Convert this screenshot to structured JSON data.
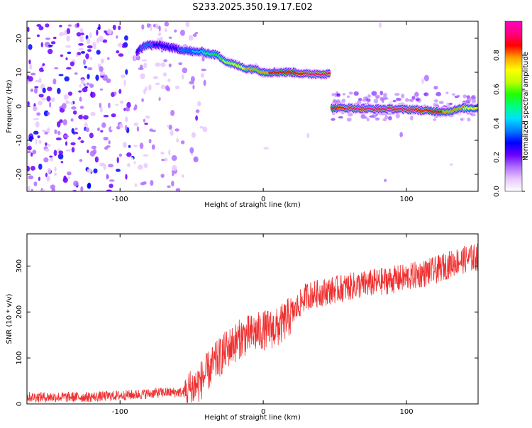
{
  "title": "S233.2025.350.19.17.E02",
  "chart_data": [
    {
      "type": "heatmap",
      "name": "spectrogram",
      "xlabel": "Height of straight line (km)",
      "ylabel": "Frequency (Hz)",
      "xlim": [
        -165,
        150
      ],
      "ylim": [
        -25,
        25
      ],
      "xticks": [
        -100,
        0,
        100
      ],
      "yticks": [
        -20,
        -10,
        0,
        10,
        20
      ],
      "grid": false,
      "colorbar": {
        "label": "Normalized spectral amplitude",
        "range": [
          0,
          1
        ],
        "ticks": [
          0.0,
          0.2,
          0.4,
          0.6,
          0.8
        ],
        "colors": [
          "#ffffff",
          "#e8c8ff",
          "#b070ff",
          "#6a00ff",
          "#0000ff",
          "#0080ff",
          "#00e0ff",
          "#00ff80",
          "#20ff00",
          "#c0ff00",
          "#ffff00",
          "#ffa000",
          "#ff0000",
          "#ff0080",
          "#ff00c0"
        ]
      },
      "ridge": [
        {
          "x": -88,
          "y": 16,
          "a": 0.3
        },
        {
          "x": -82,
          "y": 18,
          "a": 0.35
        },
        {
          "x": -72,
          "y": 18,
          "a": 0.3
        },
        {
          "x": -62,
          "y": 17,
          "a": 0.3
        },
        {
          "x": -55,
          "y": 16.5,
          "a": 0.35
        },
        {
          "x": -48,
          "y": 16,
          "a": 0.4
        },
        {
          "x": -43,
          "y": 16,
          "a": 0.45
        },
        {
          "x": -38,
          "y": 15.5,
          "a": 0.5
        },
        {
          "x": -32,
          "y": 15,
          "a": 0.55
        },
        {
          "x": -25,
          "y": 13,
          "a": 0.65
        },
        {
          "x": -18,
          "y": 12,
          "a": 0.7
        },
        {
          "x": -12,
          "y": 11,
          "a": 0.75
        },
        {
          "x": -5,
          "y": 11,
          "a": 0.75
        },
        {
          "x": 0,
          "y": 10,
          "a": 0.8
        },
        {
          "x": 10,
          "y": 10,
          "a": 0.85
        },
        {
          "x": 20,
          "y": 10,
          "a": 0.85
        },
        {
          "x": 30,
          "y": 9.5,
          "a": 0.9
        },
        {
          "x": 40,
          "y": 9.5,
          "a": 0.9
        },
        {
          "x": 46,
          "y": 9.5,
          "a": 0.9
        },
        {
          "x": 48,
          "y": -0.5,
          "a": 0.85
        },
        {
          "x": 60,
          "y": -0.5,
          "a": 0.9
        },
        {
          "x": 75,
          "y": -0.8,
          "a": 0.95
        },
        {
          "x": 90,
          "y": -0.8,
          "a": 0.95
        },
        {
          "x": 105,
          "y": -1,
          "a": 0.9
        },
        {
          "x": 120,
          "y": -1.5,
          "a": 0.85
        },
        {
          "x": 130,
          "y": -1.5,
          "a": 0.8
        },
        {
          "x": 140,
          "y": -0.5,
          "a": 0.75
        },
        {
          "x": 150,
          "y": -0.5,
          "a": 0.7
        }
      ]
    },
    {
      "type": "line",
      "name": "snr",
      "xlabel": "Height of straight line (km)",
      "ylabel": "SNR (10 * v/v)",
      "xlim": [
        -165,
        150
      ],
      "ylim": [
        0,
        370
      ],
      "xticks": [
        -100,
        0,
        100
      ],
      "yticks": [
        0,
        100,
        200,
        300
      ],
      "color": "#f03030",
      "grid": false,
      "trend": [
        {
          "x": -165,
          "y": 15
        },
        {
          "x": -120,
          "y": 15
        },
        {
          "x": -90,
          "y": 20
        },
        {
          "x": -70,
          "y": 25
        },
        {
          "x": -55,
          "y": 25
        },
        {
          "x": -45,
          "y": 45
        },
        {
          "x": -35,
          "y": 85
        },
        {
          "x": -25,
          "y": 120
        },
        {
          "x": -15,
          "y": 145
        },
        {
          "x": 0,
          "y": 160
        },
        {
          "x": 10,
          "y": 165
        },
        {
          "x": 20,
          "y": 195
        },
        {
          "x": 30,
          "y": 235
        },
        {
          "x": 45,
          "y": 245
        },
        {
          "x": 60,
          "y": 255
        },
        {
          "x": 80,
          "y": 265
        },
        {
          "x": 100,
          "y": 275
        },
        {
          "x": 120,
          "y": 290
        },
        {
          "x": 135,
          "y": 310
        },
        {
          "x": 150,
          "y": 320
        }
      ]
    }
  ]
}
